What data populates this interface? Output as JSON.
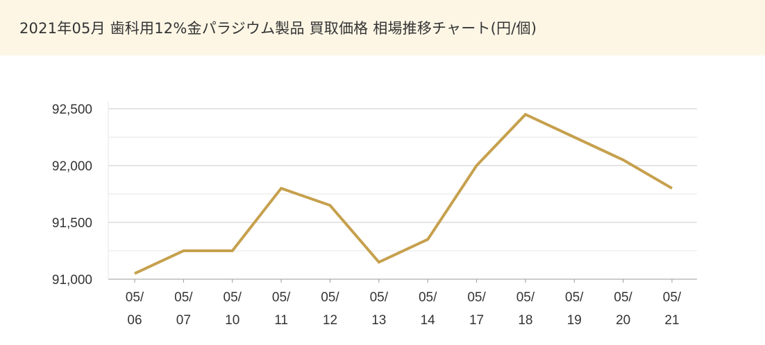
{
  "header": {
    "title": "2021年05月 歯科用12%金パラジウム製品 買取価格 相場推移チャート(円/個)"
  },
  "colors": {
    "title_background": "#fdf6e5",
    "line": "#c6a04d",
    "major_grid": "#c8c8c8",
    "minor_grid": "#e6e6e6",
    "axis": "#999999"
  },
  "chart_data": {
    "type": "line",
    "title": "2021年05月 歯科用12%金パラジウム製品 買取価格 相場推移チャート(円/個)",
    "categories": [
      [
        "05/",
        "06"
      ],
      [
        "05/",
        "07"
      ],
      [
        "05/",
        "10"
      ],
      [
        "05/",
        "11"
      ],
      [
        "05/",
        "12"
      ],
      [
        "05/",
        "13"
      ],
      [
        "05/",
        "14"
      ],
      [
        "05/",
        "17"
      ],
      [
        "05/",
        "18"
      ],
      [
        "05/",
        "19"
      ],
      [
        "05/",
        "20"
      ],
      [
        "05/",
        "21"
      ]
    ],
    "series": [
      {
        "values": [
          91050,
          91250,
          91250,
          91800,
          91650,
          91150,
          91350,
          92000,
          92450,
          92250,
          92050,
          91800
        ]
      }
    ],
    "yticks": [
      91000,
      91500,
      92000,
      92500
    ],
    "ytick_labels": [
      "91,000",
      "91,500",
      "92,000",
      "92,500"
    ],
    "ylim": [
      91000,
      92500
    ],
    "grid": true,
    "legend": "none"
  }
}
